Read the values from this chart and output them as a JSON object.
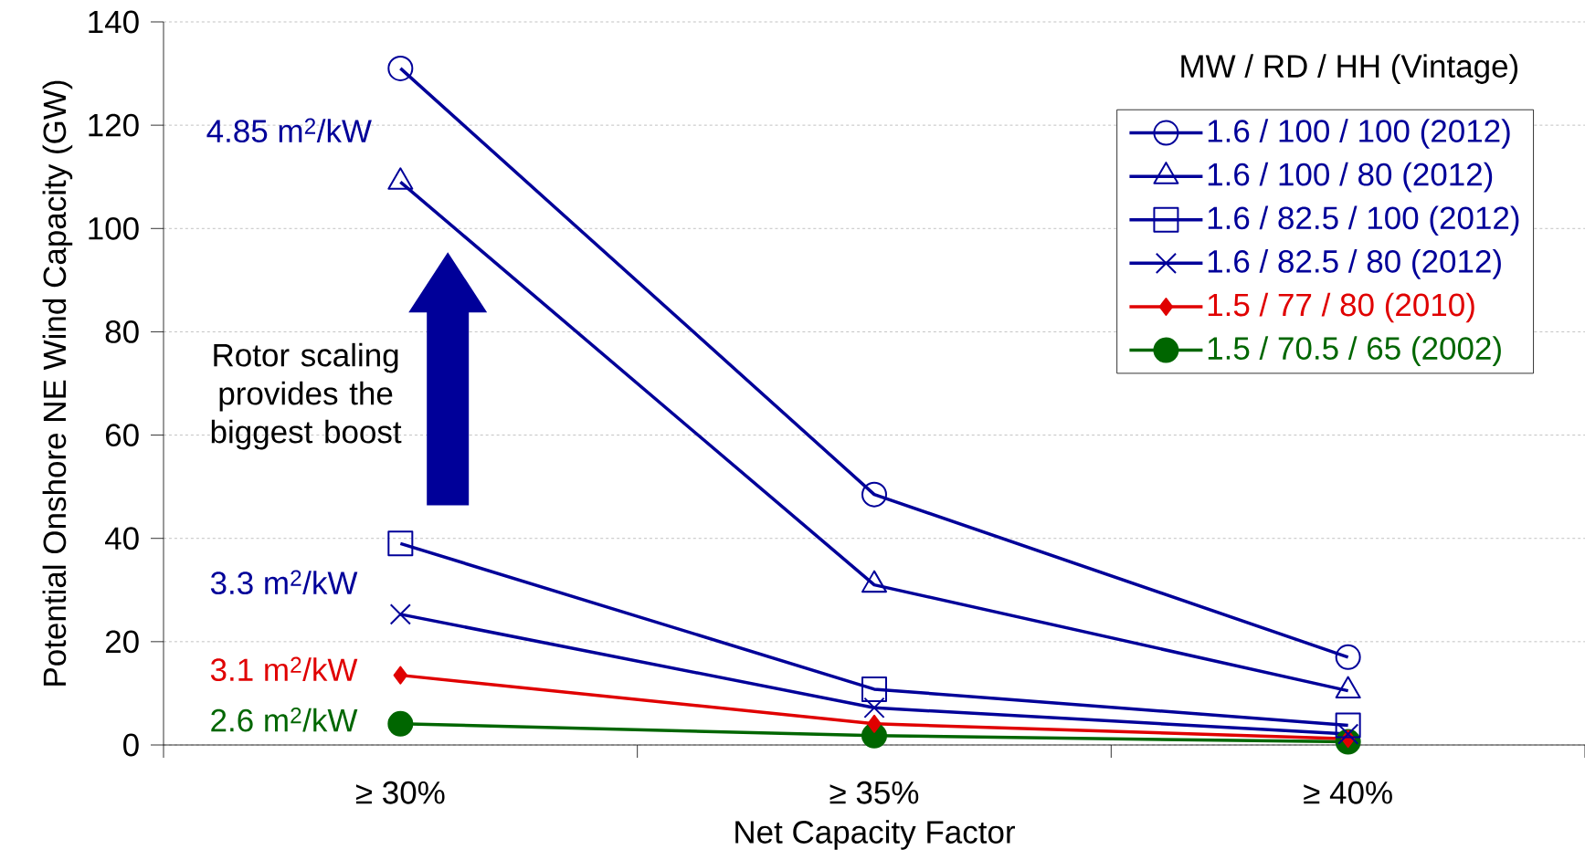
{
  "chart_data": {
    "type": "line",
    "xlabel": "Net Capacity Factor",
    "ylabel": "Potential Onshore NE Wind Capacity (GW)",
    "legend_title": "MW / RD / HH (Vintage)",
    "categories": [
      "≥ 30%",
      "≥ 35%",
      "≥ 40%"
    ],
    "series": [
      {
        "name": "1.6 / 100 / 100 (2012)",
        "color": "#000099",
        "marker": "circle",
        "values": [
          131,
          48.5,
          17
        ]
      },
      {
        "name": "1.6 / 100 / 80 (2012)",
        "color": "#000099",
        "marker": "triangle",
        "values": [
          109,
          31,
          10.5
        ]
      },
      {
        "name": "1.6 / 82.5 / 100 (2012)",
        "color": "#000099",
        "marker": "square",
        "values": [
          39,
          10.8,
          3.8
        ]
      },
      {
        "name": "1.6 / 82.5 / 80 (2012)",
        "color": "#000099",
        "marker": "cross",
        "values": [
          25.3,
          7.2,
          2.1
        ]
      },
      {
        "name": "1.5 / 77 / 80 (2010)",
        "color": "#e00000",
        "marker": "diamond",
        "values": [
          13.5,
          4.1,
          1.2
        ]
      },
      {
        "name": "1.5 / 70.5 / 65 (2002)",
        "color": "#006600",
        "marker": "circle",
        "values": [
          4.1,
          1.8,
          0.6
        ]
      }
    ],
    "ylim": [
      0,
      140
    ],
    "yticks": [
      0,
      20,
      40,
      60,
      80,
      100,
      120,
      140
    ],
    "grid": "y",
    "legend": "top right",
    "annotations": [
      "4.85 m$^{2}$/kW",
      "3.3 m$^{2}$/kW",
      "3.1 m$^{2}$/kW",
      "2.6 m$^{2}$/kW",
      "Rotor scaling provides the biggest boost"
    ]
  }
}
